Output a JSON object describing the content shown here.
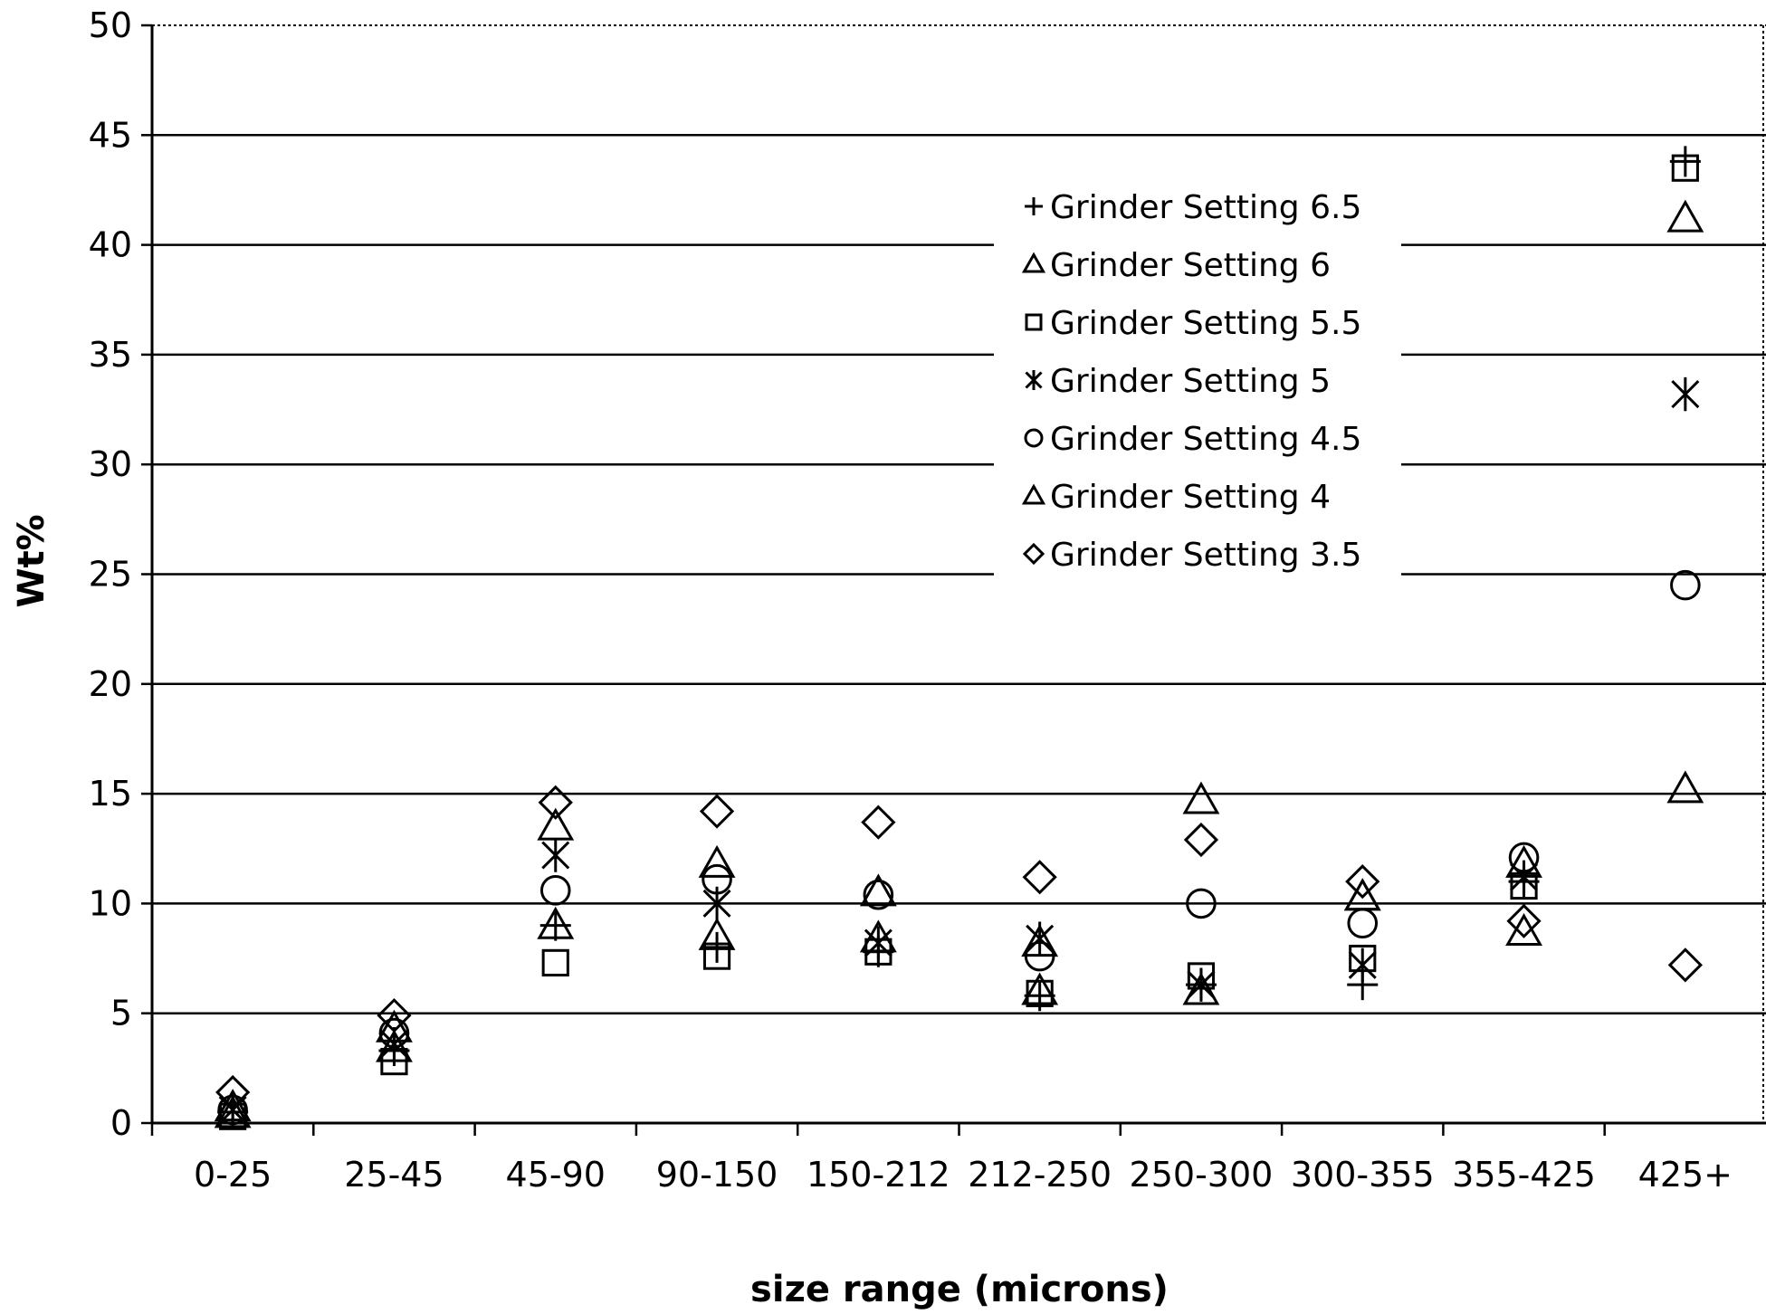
{
  "chart_data": {
    "type": "scatter",
    "title": "",
    "xlabel": "size range (microns)",
    "ylabel": "Wt%",
    "categories": [
      "0-25",
      "25-45",
      "45-90",
      "90-150",
      "150-212",
      "212-250",
      "250-300",
      "300-355",
      "355-425",
      "425+"
    ],
    "ylim": [
      0,
      50
    ],
    "yticks": [
      0,
      5,
      10,
      15,
      20,
      25,
      30,
      35,
      40,
      45,
      50
    ],
    "grid": "horizontal",
    "legend_position": "top-right",
    "series": [
      {
        "name": "Grinder Setting 6.5",
        "marker": "plus",
        "values": [
          0.5,
          3.3,
          9.0,
          8.0,
          7.8,
          5.8,
          6.3,
          6.3,
          11.0,
          43.8
        ]
      },
      {
        "name": "Grinder Setting 6",
        "marker": "triangle",
        "values": [
          0.4,
          3.4,
          13.5,
          11.8,
          10.5,
          6.0,
          14.7,
          10.3,
          11.8,
          41.2
        ]
      },
      {
        "name": "Grinder Setting 5.5",
        "marker": "square",
        "values": [
          0.3,
          2.8,
          7.3,
          7.6,
          7.8,
          5.9,
          6.7,
          7.5,
          10.8,
          43.5
        ]
      },
      {
        "name": "Grinder Setting 5",
        "marker": "asterisk",
        "values": [
          0.6,
          3.6,
          12.2,
          10.0,
          8.2,
          8.4,
          6.3,
          7.2,
          11.2,
          33.2
        ]
      },
      {
        "name": "Grinder Setting 4.5",
        "marker": "circle",
        "values": [
          0.6,
          4.1,
          10.6,
          11.1,
          10.4,
          7.6,
          10.0,
          9.1,
          12.1,
          24.5
        ]
      },
      {
        "name": "Grinder Setting 4",
        "marker": "triangle",
        "values": [
          0.7,
          4.3,
          9.0,
          8.5,
          8.4,
          8.2,
          6.0,
          10.3,
          8.7,
          15.2
        ]
      },
      {
        "name": "Grinder Setting 3.5",
        "marker": "diamond",
        "values": [
          1.4,
          4.9,
          14.6,
          14.2,
          13.7,
          11.2,
          12.9,
          11.0,
          9.2,
          7.2
        ]
      }
    ]
  }
}
